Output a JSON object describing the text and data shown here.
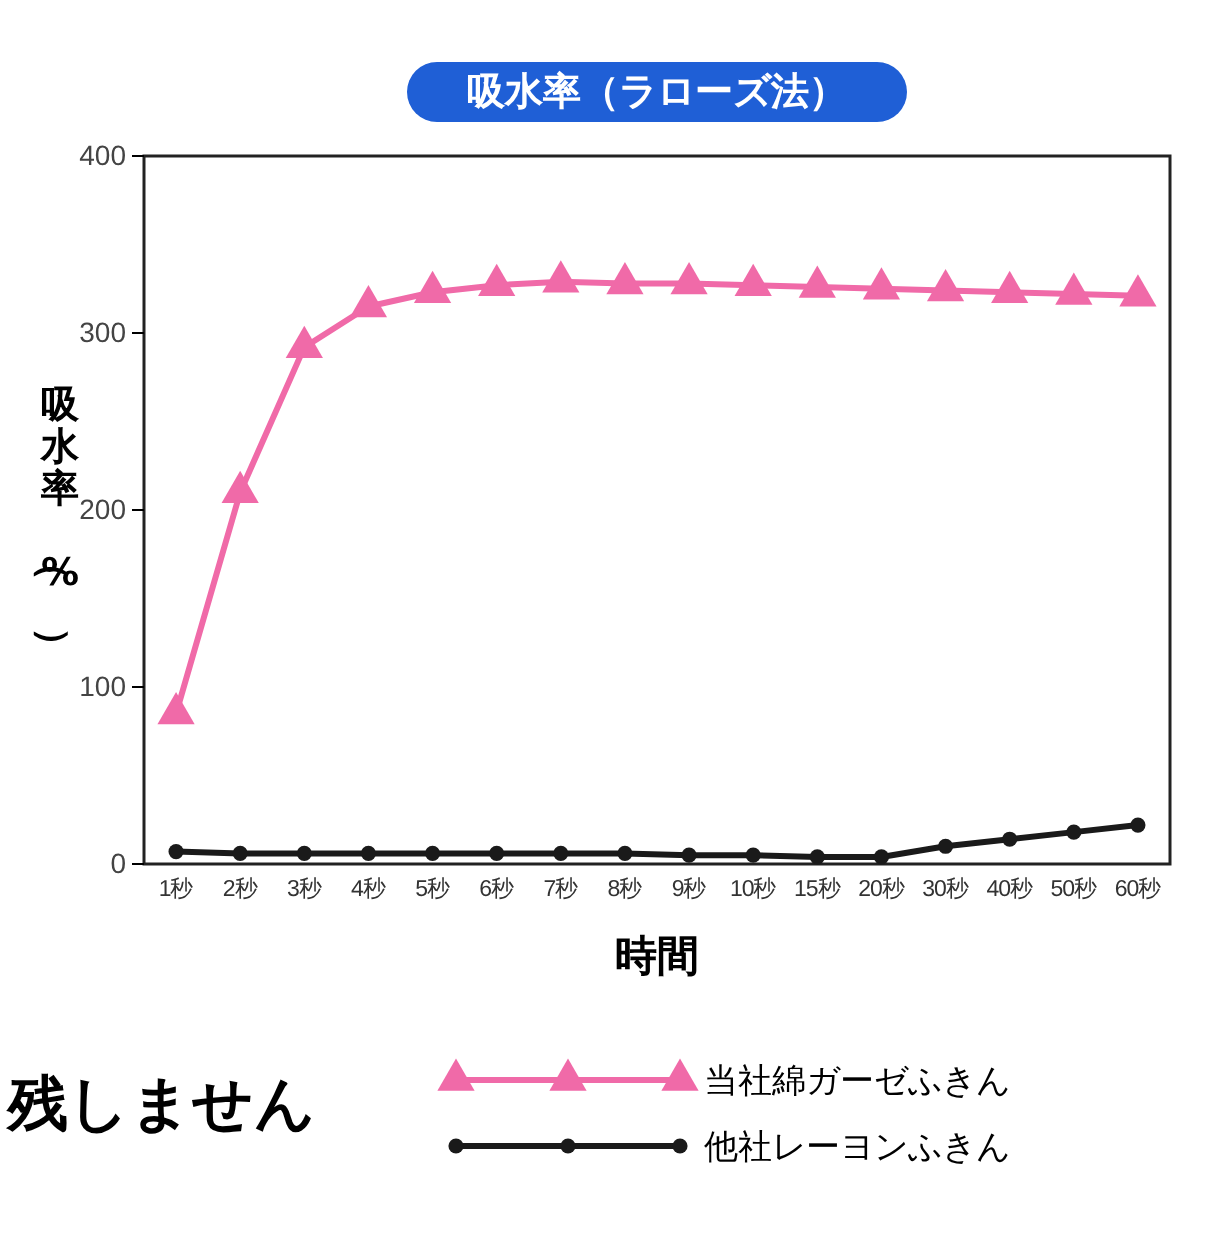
{
  "chart_data": {
    "type": "line",
    "title": "吸水率（ラローズ法）",
    "xlabel": "時間",
    "ylabel": "吸水率（%）",
    "categories": [
      "1秒",
      "2秒",
      "3秒",
      "4秒",
      "5秒",
      "6秒",
      "7秒",
      "8秒",
      "9秒",
      "10秒",
      "15秒",
      "20秒",
      "30秒",
      "40秒",
      "50秒",
      "60秒"
    ],
    "series": [
      {
        "name": "当社綿ガーゼふきん",
        "color": "#f06aa8",
        "marker": "triangle",
        "values": [
          85,
          210,
          292,
          315,
          323,
          327,
          329,
          328,
          328,
          327,
          326,
          325,
          324,
          323,
          322,
          321
        ]
      },
      {
        "name": "他社レーヨンふきん",
        "color": "#1a1a1a",
        "marker": "circle",
        "values": [
          7,
          6,
          6,
          6,
          6,
          6,
          6,
          6,
          5,
          5,
          4,
          4,
          10,
          14,
          18,
          22
        ]
      }
    ],
    "ylim": [
      0,
      400
    ],
    "yticks": [
      0,
      100,
      200,
      300,
      400
    ],
    "grid": false,
    "legend": "bottom right",
    "line_style": "solid",
    "annotations": [
      "残しません"
    ]
  }
}
